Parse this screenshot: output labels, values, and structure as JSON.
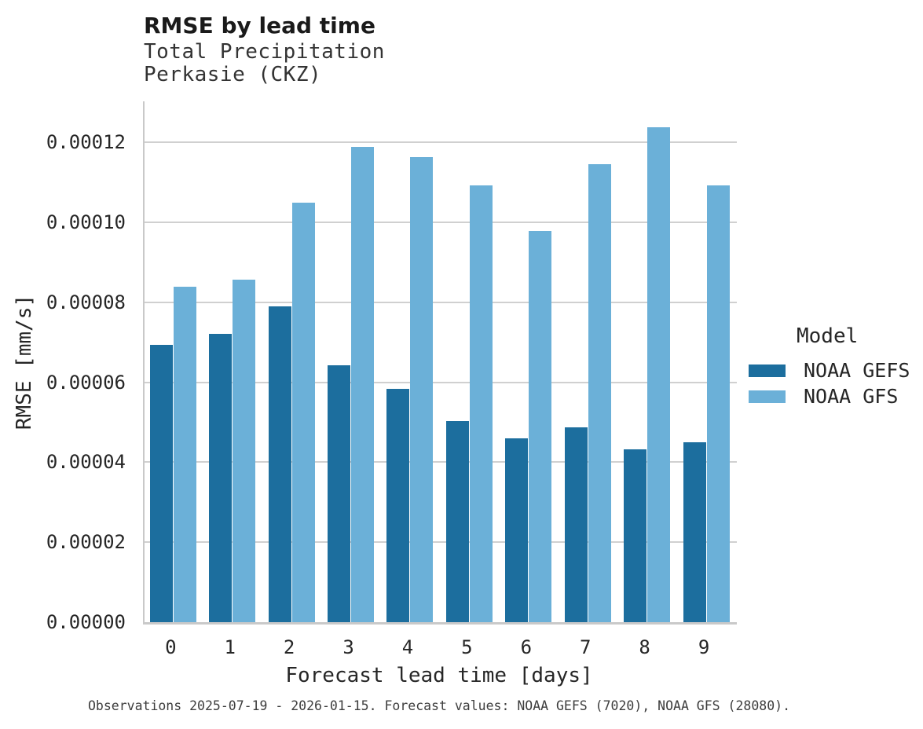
{
  "chart_data": {
    "type": "bar",
    "title": "RMSE by lead time",
    "subtitle": [
      "Total Precipitation",
      "Perkasie (CKZ)"
    ],
    "xlabel": "Forecast lead time [days]",
    "ylabel": "RMSE [mm/s]",
    "categories": [
      "0",
      "1",
      "2",
      "3",
      "4",
      "5",
      "6",
      "7",
      "8",
      "9"
    ],
    "series": [
      {
        "name": "NOAA GEFS",
        "color": "#1c6e9e",
        "values": [
          6.93e-05,
          7.22e-05,
          7.89e-05,
          6.43e-05,
          5.84e-05,
          5.02e-05,
          4.6e-05,
          4.87e-05,
          4.33e-05,
          4.49e-05
        ]
      },
      {
        "name": "NOAA GFS",
        "color": "#6bb0d8",
        "values": [
          8.38e-05,
          8.57e-05,
          0.000105,
          0.0001188,
          0.0001163,
          0.0001093,
          9.78e-05,
          0.0001146,
          0.0001237,
          0.0001093
        ]
      }
    ],
    "yticks": [
      0,
      2e-05,
      4e-05,
      6e-05,
      8e-05,
      0.0001,
      0.00012
    ],
    "ytick_labels": [
      "0.00000",
      "0.00002",
      "0.00004",
      "0.00006",
      "0.00008",
      "0.00010",
      "0.00012"
    ],
    "ylim": [
      0,
      0.00013
    ],
    "grid": true,
    "legend_title": "Model",
    "legend_position": "right",
    "caption": "Observations 2025-07-19 - 2026-01-15. Forecast values: NOAA GEFS (7020), NOAA GFS (28080)."
  }
}
